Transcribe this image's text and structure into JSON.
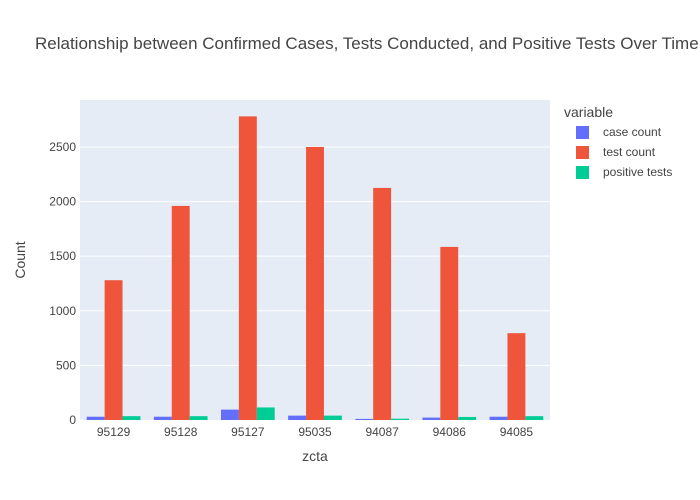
{
  "chart_data": {
    "type": "bar",
    "title": "Relationship between Confirmed Cases, Tests Conducted, and Positive Tests Over Time",
    "xlabel": "zcta",
    "ylabel": "Count",
    "categories": [
      "95129",
      "95128",
      "95127",
      "95035",
      "94087",
      "94086",
      "94085"
    ],
    "ylim": [
      0,
      2930
    ],
    "yticks": [
      0,
      500,
      1000,
      1500,
      2000,
      2500
    ],
    "legend_title": "variable",
    "legend_position": "top-right",
    "grid": true,
    "series": [
      {
        "name": "case count",
        "color": "#636efa",
        "values": [
          30,
          30,
          95,
          40,
          10,
          22,
          30
        ]
      },
      {
        "name": "test count",
        "color": "#ef553b",
        "values": [
          1280,
          1960,
          2780,
          2500,
          2125,
          1585,
          795
        ]
      },
      {
        "name": "positive tests",
        "color": "#00cc96",
        "values": [
          35,
          35,
          115,
          40,
          12,
          28,
          35
        ]
      }
    ]
  }
}
